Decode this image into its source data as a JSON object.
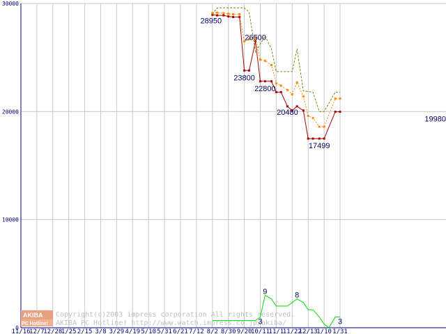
{
  "chart_data": {
    "type": "line",
    "title": "",
    "xlabel": "",
    "ylabel": "",
    "ylim": [
      0,
      30000
    ],
    "y_ticks": [
      "0",
      "10000",
      "20000",
      "30000"
    ],
    "grid": true,
    "x_labels": [
      "11/16",
      "12/7",
      "12/28",
      "1/25",
      "2/15",
      "3/8",
      "3/29",
      "4/19",
      "5/10",
      "5/31",
      "6/21",
      "7/12",
      "8/2",
      "8/30",
      "9/20",
      "10/11",
      "11/1",
      "11/22",
      "12/13",
      "1/10",
      "1/31"
    ],
    "series": [
      {
        "key": "low",
        "color": "#aa0000",
        "style": "solid-markers",
        "points": [
          [
            12.0,
            28950
          ],
          [
            12.3,
            28900
          ],
          [
            12.7,
            28900
          ],
          [
            13.0,
            28800
          ],
          [
            13.3,
            28750
          ],
          [
            13.7,
            28750
          ],
          [
            14.0,
            23800
          ],
          [
            14.3,
            23800
          ],
          [
            14.7,
            26500
          ],
          [
            15.0,
            22800
          ],
          [
            15.3,
            22800
          ],
          [
            15.7,
            22800
          ],
          [
            16.0,
            21800
          ],
          [
            16.3,
            21800
          ],
          [
            16.7,
            20480
          ],
          [
            17.0,
            20100
          ],
          [
            17.3,
            20480
          ],
          [
            17.7,
            20100
          ],
          [
            18.0,
            17500
          ],
          [
            18.3,
            17500
          ],
          [
            18.7,
            17499
          ],
          [
            19.0,
            17499
          ],
          [
            19.7,
            19980
          ],
          [
            20.0,
            19980
          ]
        ]
      },
      {
        "key": "avg",
        "color": "#ff8800",
        "style": "dotted-markers",
        "points": [
          [
            12.0,
            29100
          ],
          [
            12.3,
            29150
          ],
          [
            12.7,
            29100
          ],
          [
            13.0,
            29050
          ],
          [
            13.3,
            29000
          ],
          [
            13.7,
            29000
          ],
          [
            14.0,
            26500
          ],
          [
            14.3,
            26700
          ],
          [
            14.7,
            26800
          ],
          [
            15.0,
            24800
          ],
          [
            15.3,
            24700
          ],
          [
            15.7,
            24300
          ],
          [
            16.0,
            22600
          ],
          [
            16.3,
            22400
          ],
          [
            16.7,
            22000
          ],
          [
            17.0,
            21600
          ],
          [
            17.3,
            22700
          ],
          [
            17.7,
            21400
          ],
          [
            18.0,
            19600
          ],
          [
            18.3,
            19400
          ],
          [
            18.7,
            18600
          ],
          [
            19.0,
            18600
          ],
          [
            19.7,
            21200
          ],
          [
            20.0,
            21200
          ]
        ]
      },
      {
        "key": "high",
        "color": "#808000",
        "style": "dashed",
        "points": [
          [
            12.0,
            29000
          ],
          [
            12.3,
            29600
          ],
          [
            13.0,
            29600
          ],
          [
            14.0,
            29600
          ],
          [
            14.3,
            29200
          ],
          [
            14.7,
            25500
          ],
          [
            15.3,
            27000
          ],
          [
            15.7,
            25800
          ],
          [
            16.0,
            23700
          ],
          [
            16.7,
            23700
          ],
          [
            17.0,
            23700
          ],
          [
            17.3,
            25800
          ],
          [
            17.7,
            21900
          ],
          [
            18.3,
            21800
          ],
          [
            18.7,
            20000
          ],
          [
            19.0,
            20000
          ],
          [
            19.7,
            21800
          ],
          [
            20.0,
            21800
          ]
        ]
      },
      {
        "key": "shops",
        "color": "#00dd00",
        "style": "solid",
        "scale": 333.33,
        "points": [
          [
            12.0,
            2
          ],
          [
            12.3,
            2
          ],
          [
            13.0,
            2
          ],
          [
            14.0,
            2
          ],
          [
            14.7,
            2
          ],
          [
            15.0,
            3
          ],
          [
            15.3,
            9
          ],
          [
            15.7,
            8
          ],
          [
            16.0,
            6
          ],
          [
            16.7,
            6
          ],
          [
            17.3,
            8
          ],
          [
            17.7,
            7
          ],
          [
            18.0,
            5
          ],
          [
            18.3,
            5
          ],
          [
            18.7,
            3
          ],
          [
            19.0,
            1
          ],
          [
            19.3,
            0
          ],
          [
            19.7,
            3
          ],
          [
            20.0,
            3
          ]
        ]
      }
    ],
    "data_labels": [
      {
        "text": "28950",
        "x": 12.0,
        "y": 28950
      },
      {
        "text": "26500",
        "x": 14.7,
        "y": 26500
      },
      {
        "text": "23800",
        "x": 14.0,
        "y": 23800
      },
      {
        "text": "22800",
        "x": 15.3,
        "y": 22800
      },
      {
        "text": "20480",
        "x": 16.7,
        "y": 20480
      },
      {
        "text": "17499",
        "x": 18.7,
        "y": 17499
      },
      {
        "text": "19980",
        "x": 20.0,
        "y": 19980
      },
      {
        "text": "9",
        "x": 15.3,
        "y": 9,
        "series": "shops"
      },
      {
        "text": "8",
        "x": 17.3,
        "y": 8,
        "series": "shops"
      },
      {
        "text": "3",
        "x": 15.0,
        "y": 3,
        "series": "shops"
      },
      {
        "text": "3",
        "x": 20.0,
        "y": 3,
        "series": "shops"
      }
    ]
  },
  "watermark": {
    "logo_top": "AKIBA",
    "logo_bottom": "PC Hotline!",
    "line1": "Copyright(c)2003 impress corporation All rights reserved.",
    "line2": "AKIBA PC Hotline! http://www.watch.impress.co.jp/akiba/"
  }
}
